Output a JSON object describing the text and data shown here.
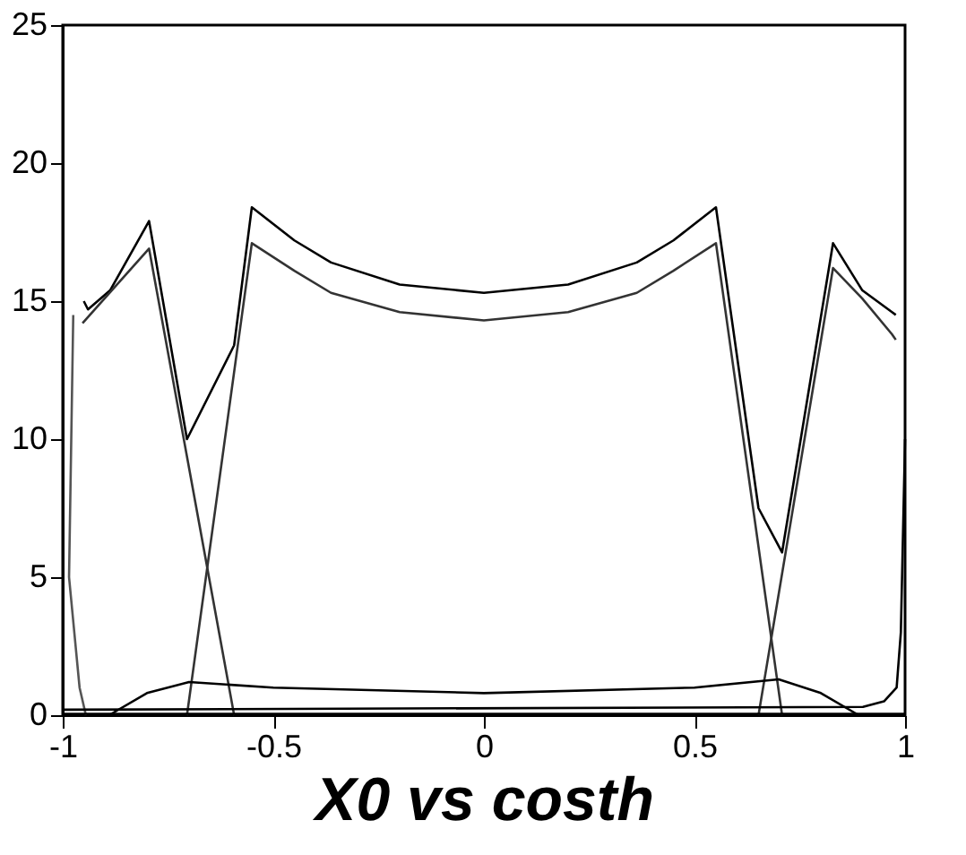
{
  "chart_data": {
    "type": "line",
    "xlabel": "X0 vs costh",
    "xlim": [
      -1,
      1
    ],
    "ylim": [
      0,
      25
    ],
    "xticks": [
      -1,
      -0.5,
      0,
      0.5,
      1
    ],
    "yticks": [
      0,
      5,
      10,
      15,
      20,
      25
    ],
    "grid": false,
    "legend": false,
    "marker": "none",
    "line_style": "solid",
    "series": [
      {
        "color": "#000000",
        "x": [
          -0.95,
          -0.94,
          -0.887,
          -0.795,
          -0.705,
          -0.593,
          -0.551,
          -0.45,
          -0.363,
          -0.2,
          0,
          0.2,
          0.363,
          0.45,
          0.551,
          0.652,
          0.708,
          0.829,
          0.898,
          0.969,
          0.978
        ],
        "values": [
          15.0,
          14.7,
          15.4,
          17.9,
          10.0,
          13.4,
          18.4,
          17.2,
          16.4,
          15.6,
          15.3,
          15.6,
          16.4,
          17.2,
          18.4,
          7.5,
          5.9,
          17.1,
          15.4,
          14.6,
          14.5
        ]
      },
      {
        "color": "#333333",
        "x": [
          -0.953,
          -0.795,
          -0.593
        ],
        "values": [
          14.2,
          16.9,
          0
        ]
      },
      {
        "color": "#333333",
        "x": [
          -0.705,
          -0.551,
          -0.45,
          -0.363,
          -0.2,
          0,
          0.2,
          0.363,
          0.45,
          0.551,
          0.708
        ],
        "values": [
          0,
          17.1,
          16.1,
          15.3,
          14.6,
          14.3,
          14.6,
          15.3,
          16.1,
          17.1,
          0
        ]
      },
      {
        "color": "#333333",
        "x": [
          0.652,
          0.829,
          0.898,
          0.969,
          0.978
        ],
        "values": [
          0,
          16.2,
          15.1,
          13.8,
          13.6
        ]
      },
      {
        "color": "#555555",
        "x": [
          -0.975,
          -0.985,
          -0.96,
          -0.945
        ],
        "values": [
          14.5,
          5,
          1,
          0
        ]
      },
      {
        "color": "#000000",
        "x": [
          -0.89,
          -0.8,
          -0.7,
          -0.5,
          0,
          0.5,
          0.7,
          0.8,
          0.89
        ],
        "values": [
          0,
          0.8,
          1.2,
          1.0,
          0.8,
          1.0,
          1.3,
          0.8,
          0
        ]
      },
      {
        "color": "#000000",
        "x": [
          -1,
          0.9,
          0.95,
          0.98,
          0.99,
          1.0
        ],
        "values": [
          0.2,
          0.3,
          0.5,
          1,
          3,
          10
        ]
      },
      {
        "color": "#000000",
        "x": [
          -1,
          1
        ],
        "values": [
          0.05,
          0.05
        ]
      }
    ]
  }
}
